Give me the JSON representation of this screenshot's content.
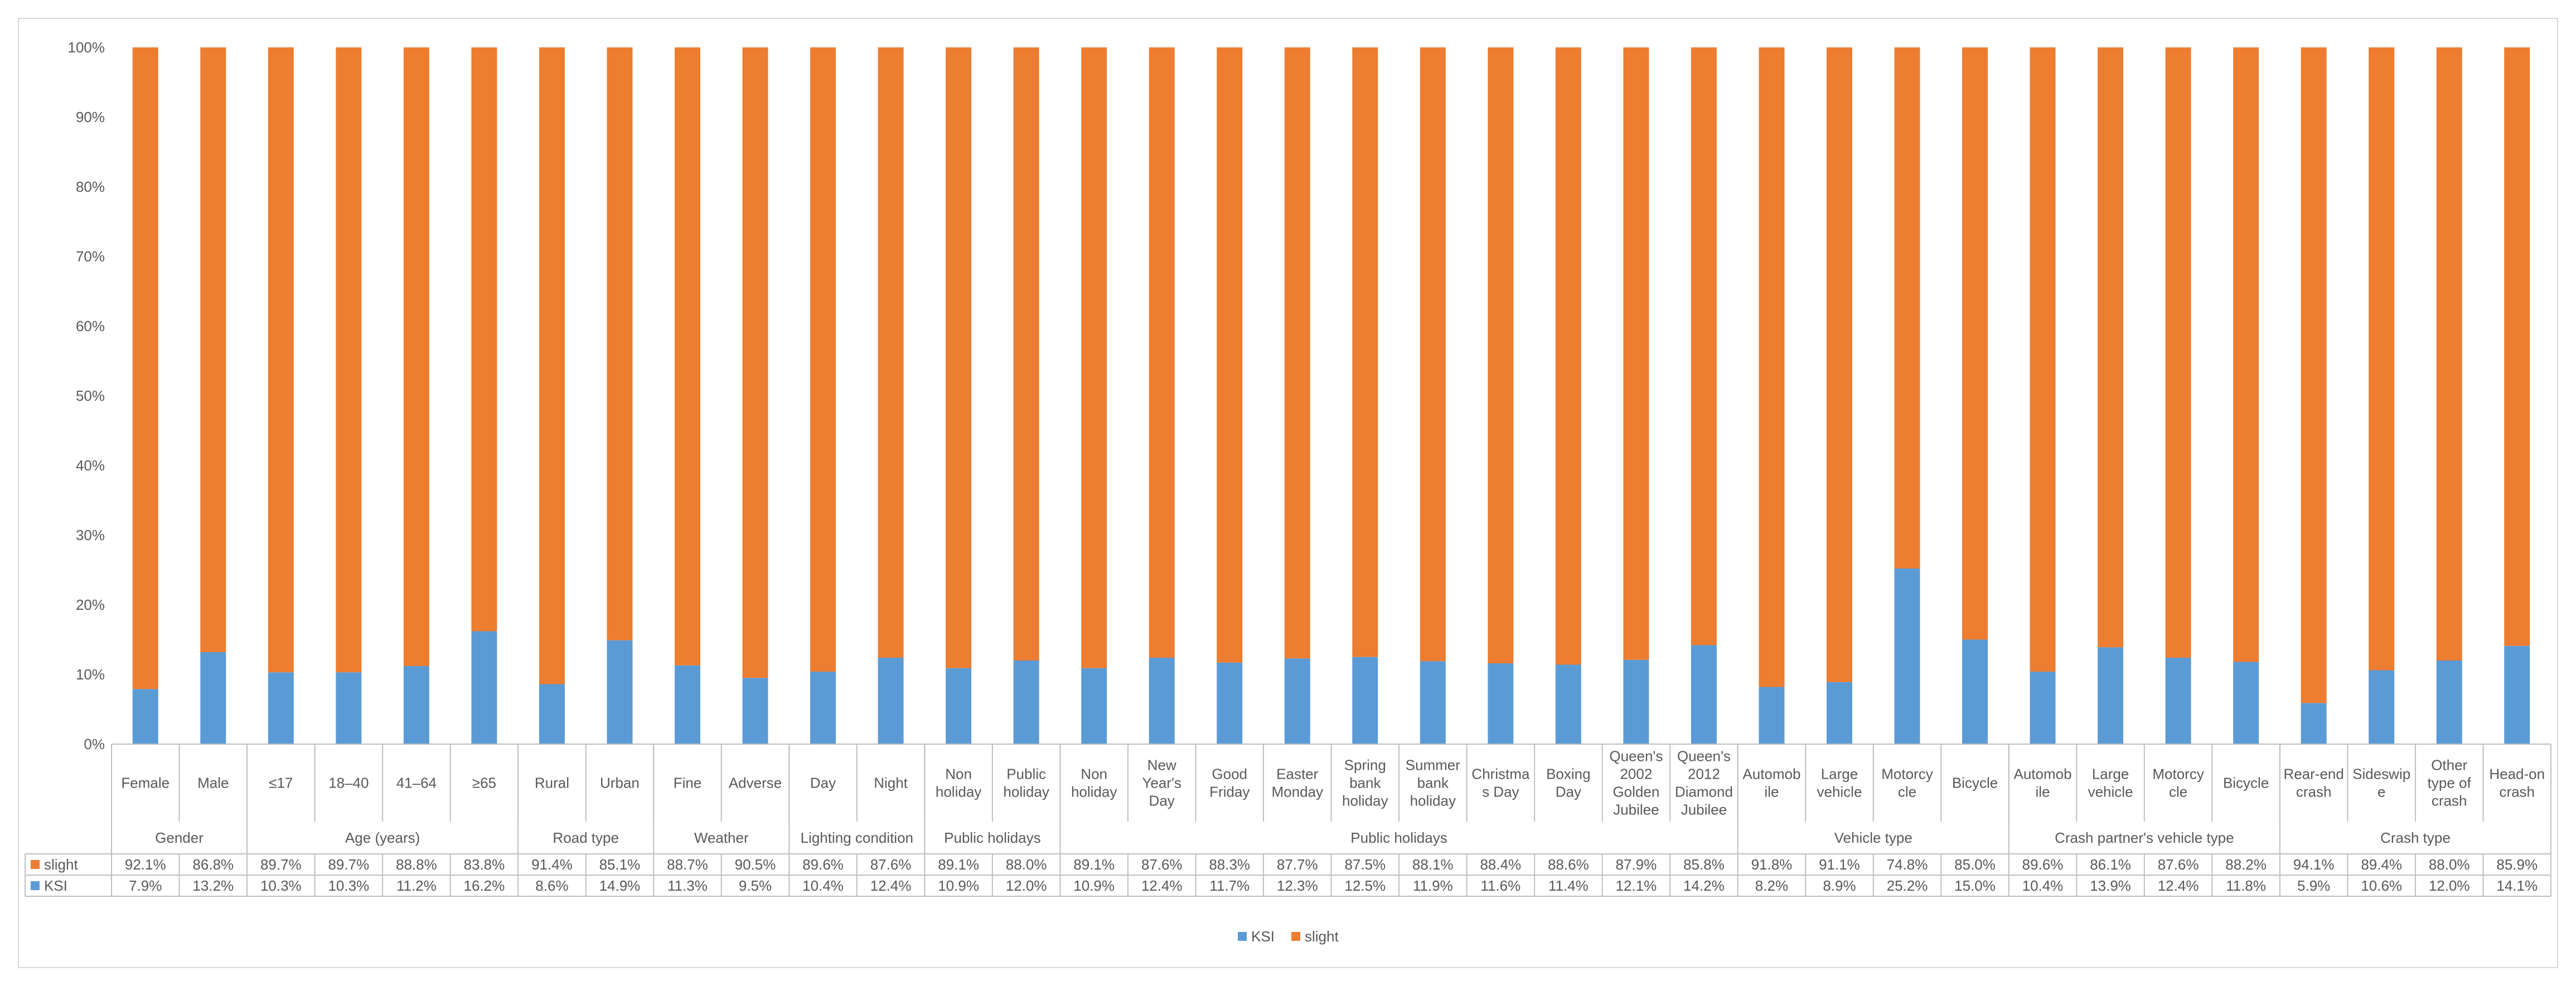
{
  "chart_data": {
    "type": "bar",
    "stacked": true,
    "percent_stacked": true,
    "ylim": [
      0,
      100
    ],
    "yticks": [
      "0%",
      "10%",
      "20%",
      "30%",
      "40%",
      "50%",
      "60%",
      "70%",
      "80%",
      "90%",
      "100%"
    ],
    "legend_position": "bottom",
    "grid": false,
    "colors": {
      "KSI": "#5b9bd5",
      "slight": "#ed7d31"
    },
    "categories": [
      "Female",
      "Male",
      "≤17",
      "18–40",
      "41–64",
      "≥65",
      "Rural",
      "Urban",
      "Fine",
      "Adverse",
      "Day",
      "Night",
      "Non holiday",
      "Public holiday",
      "Non holiday",
      "New Year's Day",
      "Good Friday",
      "Easter Monday",
      "Spring bank holiday",
      "Summer bank holiday",
      "Christma s Day",
      "Boxing Day",
      "Queen's 2002 Golden Jubilee",
      "Queen's 2012 Diamond Jubilee",
      "Automob ile",
      "Large vehicle",
      "Motorcy cle",
      "Bicycle",
      "Automob ile",
      "Large vehicle",
      "Motorcy cle",
      "Bicycle",
      "Rear-end crash",
      "Sideswip e",
      "Other type of crash",
      "Head-on crash"
    ],
    "groups": [
      {
        "label": "Gender",
        "count": 2
      },
      {
        "label": "Age (years)",
        "count": 4
      },
      {
        "label": "Road type",
        "count": 2
      },
      {
        "label": "Weather",
        "count": 2
      },
      {
        "label": "Lighting condition",
        "count": 2
      },
      {
        "label": "Public holidays",
        "count": 2
      },
      {
        "label": "Public holidays",
        "count": 10
      },
      {
        "label": "Vehicle type",
        "count": 4
      },
      {
        "label": "Crash partner's vehicle type",
        "count": 4
      },
      {
        "label": "Crash type",
        "count": 4
      }
    ],
    "series": [
      {
        "name": "KSI",
        "values": [
          7.9,
          13.2,
          10.3,
          10.3,
          11.2,
          16.2,
          8.6,
          14.9,
          11.3,
          9.5,
          10.4,
          12.4,
          10.9,
          12.0,
          10.9,
          12.4,
          11.7,
          12.3,
          12.5,
          11.9,
          11.6,
          11.4,
          12.1,
          14.2,
          8.2,
          8.9,
          25.2,
          15.0,
          10.4,
          13.9,
          12.4,
          11.8,
          5.9,
          10.6,
          12.0,
          14.1
        ],
        "labels": [
          "7.9%",
          "13.2%",
          "10.3%",
          "10.3%",
          "11.2%",
          "16.2%",
          "8.6%",
          "14.9%",
          "11.3%",
          "9.5%",
          "10.4%",
          "12.4%",
          "10.9%",
          "12.0%",
          "10.9%",
          "12.4%",
          "11.7%",
          "12.3%",
          "12.5%",
          "11.9%",
          "11.6%",
          "11.4%",
          "12.1%",
          "14.2%",
          "8.2%",
          "8.9%",
          "25.2%",
          "15.0%",
          "10.4%",
          "13.9%",
          "12.4%",
          "11.8%",
          "5.9%",
          "10.6%",
          "12.0%",
          "14.1%"
        ]
      },
      {
        "name": "slight",
        "values": [
          92.1,
          86.8,
          89.7,
          89.7,
          88.8,
          83.8,
          91.4,
          85.1,
          88.7,
          90.5,
          89.6,
          87.6,
          89.1,
          88.0,
          89.1,
          87.6,
          88.3,
          87.7,
          87.5,
          88.1,
          88.4,
          88.6,
          87.9,
          85.8,
          91.8,
          91.1,
          74.8,
          85.0,
          89.6,
          86.1,
          87.6,
          88.2,
          94.1,
          89.4,
          88.0,
          85.9
        ],
        "labels": [
          "92.1%",
          "86.8%",
          "89.7%",
          "89.7%",
          "88.8%",
          "83.8%",
          "91.4%",
          "85.1%",
          "88.7%",
          "90.5%",
          "89.6%",
          "87.6%",
          "89.1%",
          "88.0%",
          "89.1%",
          "87.6%",
          "88.3%",
          "87.7%",
          "87.5%",
          "88.1%",
          "88.4%",
          "88.6%",
          "87.9%",
          "85.8%",
          "91.8%",
          "91.1%",
          "74.8%",
          "85.0%",
          "89.6%",
          "86.1%",
          "87.6%",
          "88.2%",
          "94.1%",
          "89.4%",
          "88.0%",
          "85.9%"
        ]
      }
    ],
    "legend": [
      "KSI",
      "slight"
    ]
  }
}
